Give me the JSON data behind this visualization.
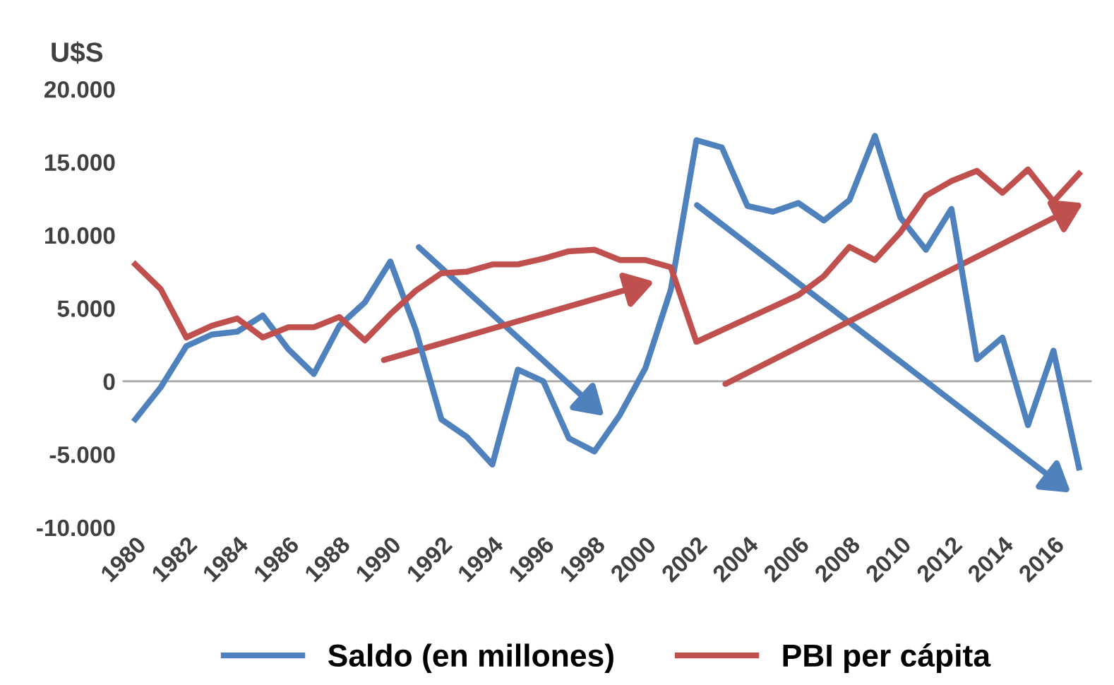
{
  "chart_data": {
    "type": "line",
    "ylabel": "U$S",
    "categories": [
      "1980",
      null,
      "1982",
      null,
      "1984",
      null,
      "1986",
      null,
      "1988",
      null,
      "1990",
      null,
      "1992",
      null,
      "1994",
      null,
      "1996",
      null,
      "1998",
      null,
      "2000",
      null,
      "2002",
      null,
      "2004",
      null,
      "2006",
      null,
      "2008",
      null,
      "2010",
      null,
      "2012",
      null,
      "2014",
      null,
      "2016",
      null
    ],
    "series": [
      {
        "name": "Saldo (en millones)",
        "color": "#4f81bd",
        "values": [
          -2600,
          -400,
          2400,
          3200,
          3400,
          4500,
          2200,
          500,
          3800,
          5400,
          8200,
          3500,
          -2600,
          -3800,
          -5700,
          800,
          0,
          -3900,
          -4800,
          -2300,
          900,
          6300,
          16500,
          16000,
          12000,
          11600,
          12200,
          11000,
          12400,
          16800,
          11200,
          9000,
          11800,
          1500,
          3000,
          -3000,
          2100,
          -5900
        ]
      },
      {
        "name": "PBI per cápita",
        "color": "#c0504d",
        "values": [
          8000,
          6300,
          3000,
          3800,
          4300,
          3000,
          3700,
          3700,
          4400,
          2800,
          4600,
          6200,
          7400,
          7500,
          8000,
          8000,
          8400,
          8900,
          9000,
          8300,
          8300,
          7800,
          2700,
          3500,
          4300,
          5100,
          5900,
          7200,
          9200,
          8300,
          10200,
          12700,
          13700,
          14400,
          12900,
          14500,
          12300,
          14200
        ]
      }
    ],
    "ylim": [
      -10000,
      20000
    ],
    "yticks": [
      {
        "value": -10000,
        "label": "-10.000"
      },
      {
        "value": -5000,
        "label": "-5.000"
      },
      0,
      {
        "value": 5000,
        "label": "5.000"
      },
      {
        "value": 10000,
        "label": "10.000"
      },
      {
        "value": 15000,
        "label": "15.000"
      },
      {
        "value": 20000,
        "label": "20.000"
      }
    ],
    "ref_lines": [
      {
        "axis": "y",
        "value": 0,
        "color": "#a6a6a6"
      }
    ],
    "legend": "bottom",
    "grid": false
  }
}
